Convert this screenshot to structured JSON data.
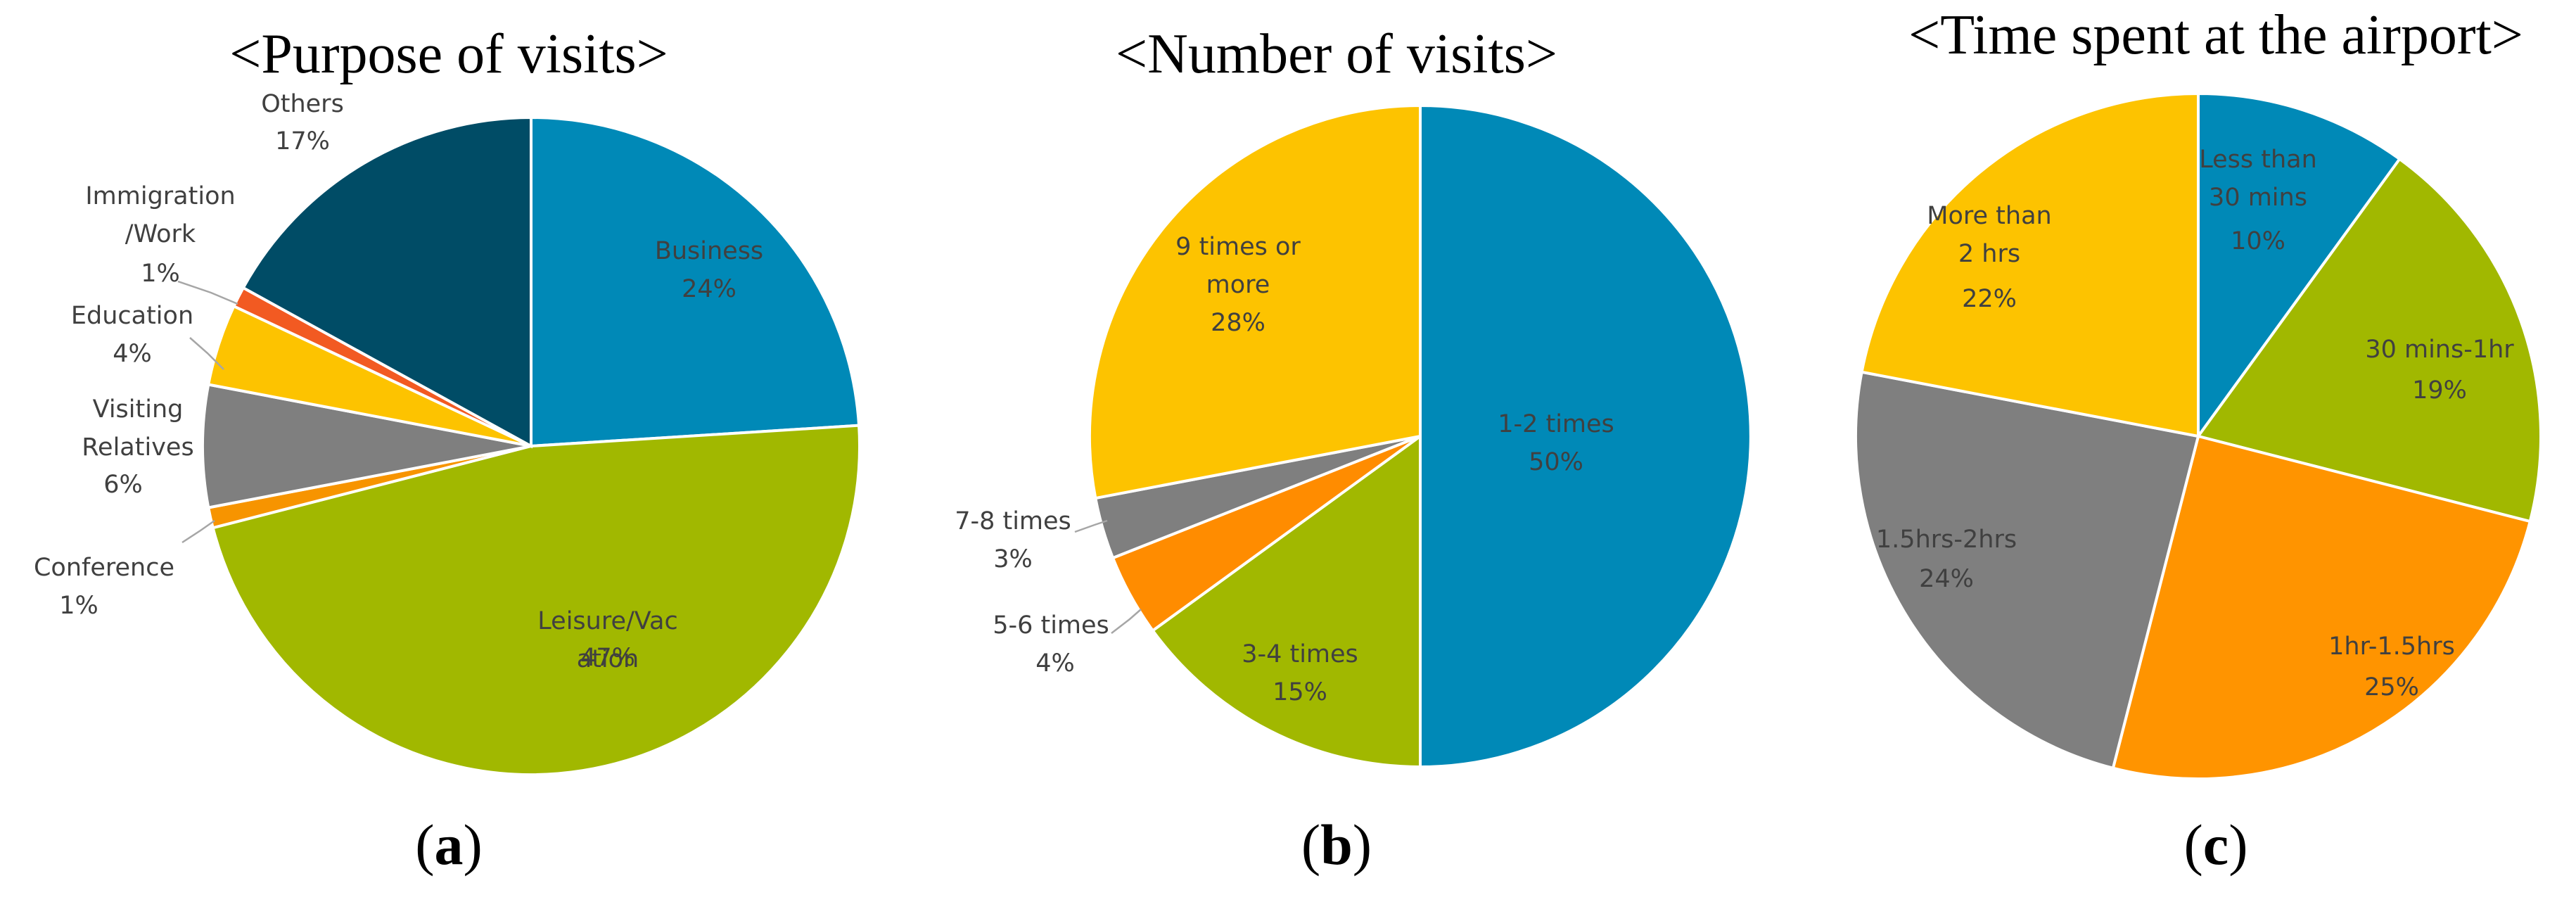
{
  "chart_data": [
    {
      "type": "pie",
      "title": "<Purpose of visits>",
      "caption": "a",
      "slices": [
        {
          "label": [
            "Business"
          ],
          "percent_label": "24%",
          "value": 24,
          "color": "#0089b7"
        },
        {
          "label": [
            "Leisure/Vac",
            "ation"
          ],
          "percent_label": "47%",
          "value": 47,
          "color": "#a1b800"
        },
        {
          "label": [
            "Conference"
          ],
          "percent_label": "1%",
          "value": 1,
          "color": "#f79400"
        },
        {
          "label": [
            "Visiting",
            "Relatives"
          ],
          "percent_label": "6%",
          "value": 6,
          "color": "#7f7f7f"
        },
        {
          "label": [
            "Education"
          ],
          "percent_label": "4%",
          "value": 4,
          "color": "#fdc300"
        },
        {
          "label": [
            "Immigration",
            "/Work"
          ],
          "percent_label": "1%",
          "value": 1,
          "color": "#f25a22"
        },
        {
          "label": [
            "Others"
          ],
          "percent_label": "17%",
          "value": 17,
          "color": "#004c66"
        }
      ]
    },
    {
      "type": "pie",
      "title": "<Number of visits>",
      "caption": "b",
      "slices": [
        {
          "label": [
            "1-2 times"
          ],
          "percent_label": "50%",
          "value": 50,
          "color": "#0089b7"
        },
        {
          "label": [
            "3-4 times"
          ],
          "percent_label": "15%",
          "value": 15,
          "color": "#a1b800"
        },
        {
          "label": [
            "5-6 times"
          ],
          "percent_label": "4%",
          "value": 4,
          "color": "#ff8c00"
        },
        {
          "label": [
            "7-8 times"
          ],
          "percent_label": "3%",
          "value": 3,
          "color": "#7f7f7f"
        },
        {
          "label": [
            "9 times or",
            "more"
          ],
          "percent_label": "28%",
          "value": 28,
          "color": "#fdc300"
        }
      ]
    },
    {
      "type": "pie",
      "title": "<Time spent at the airport>",
      "caption": "c",
      "slices": [
        {
          "label": [
            "Less than",
            "30 mins"
          ],
          "percent_label": "10%",
          "value": 10,
          "color": "#0089b7"
        },
        {
          "label": [
            "30 mins-1hr"
          ],
          "percent_label": "19%",
          "value": 19,
          "color": "#a1b800"
        },
        {
          "label": [
            "1hr-1.5hrs"
          ],
          "percent_label": "25%",
          "value": 25,
          "color": "#ff9400"
        },
        {
          "label": [
            "1.5hrs-2hrs"
          ],
          "percent_label": "24%",
          "value": 24,
          "color": "#7f7f7f"
        },
        {
          "label": [
            "More than",
            "2 hrs"
          ],
          "percent_label": "22%",
          "value": 22,
          "color": "#fdc300"
        }
      ]
    }
  ]
}
